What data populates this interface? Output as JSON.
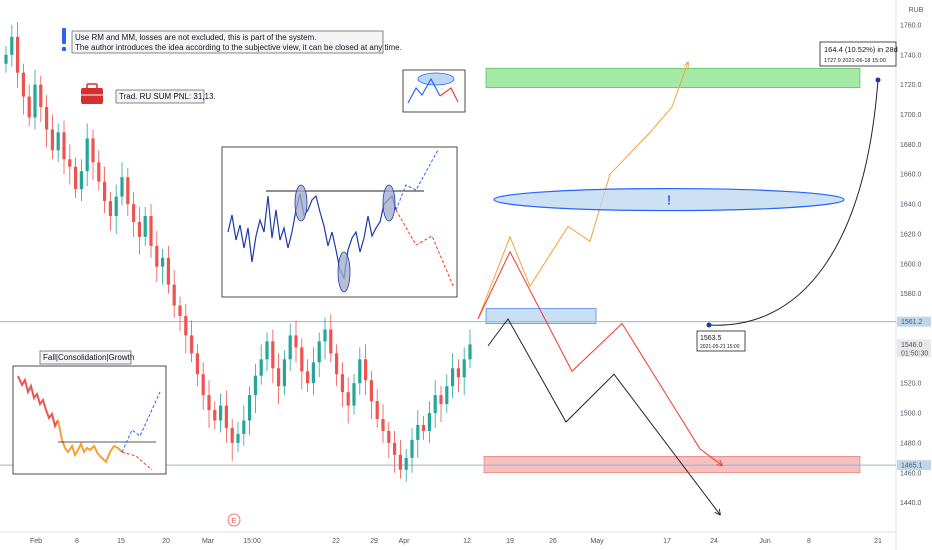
{
  "chart_data": {
    "type": "candlestick",
    "currency": "RUB",
    "ylim": [
      1425,
      1770
    ],
    "y_ticks": [
      1440,
      1460,
      1480,
      1500,
      1520,
      1540,
      1560,
      1580,
      1600,
      1620,
      1640,
      1660,
      1680,
      1700,
      1720,
      1740,
      1760
    ],
    "y_tick_labels": [
      "1440.0",
      "1460.0",
      "1480.0",
      "1500.0",
      "1520.0",
      "1540.0",
      "1560.0",
      "1580.0",
      "1600.0",
      "1620.0",
      "1640.0",
      "1660.0",
      "1680.0",
      "1700.0",
      "1720.0",
      "1740.0",
      "1760.0"
    ],
    "x_tick_labels": [
      "Feb",
      "8",
      "15",
      "20",
      "Mar",
      "15:00",
      "22",
      "29",
      "Apr",
      "12",
      "19",
      "26",
      "May",
      "17",
      "24",
      "Jun",
      "8",
      "21"
    ],
    "price_badges": [
      {
        "label": "1561.2",
        "value": 1561.2,
        "color": "#bfd7ea"
      },
      {
        "label": "1546.0",
        "sublabel": "01:50:30",
        "value": 1546.0,
        "color": "#e8e8e8"
      },
      {
        "label": "1465.1",
        "value": 1465.1,
        "color": "#bfd7ea"
      }
    ],
    "horizontal_levels": [
      1561.2,
      1465.1
    ],
    "candles_close_path": [
      1740,
      1752,
      1728,
      1712,
      1698,
      1720,
      1705,
      1690,
      1676,
      1688,
      1670,
      1665,
      1650,
      1662,
      1684,
      1668,
      1655,
      1642,
      1632,
      1645,
      1658,
      1640,
      1628,
      1618,
      1632,
      1612,
      1598,
      1604,
      1586,
      1572,
      1565,
      1552,
      1540,
      1526,
      1512,
      1502,
      1495,
      1505,
      1490,
      1480,
      1486,
      1495,
      1512,
      1525,
      1536,
      1548,
      1530,
      1518,
      1536,
      1552,
      1544,
      1528,
      1520,
      1534,
      1548,
      1556,
      1540,
      1526,
      1514,
      1505,
      1520,
      1536,
      1522,
      1508,
      1496,
      1488,
      1480,
      1472,
      1462,
      1470,
      1482,
      1492,
      1488,
      1500,
      1512,
      1506,
      1518,
      1530,
      1524,
      1536,
      1546
    ]
  },
  "zones": {
    "target_zone": {
      "from": 1718,
      "to": 1731,
      "color": "#7ee07e"
    },
    "resistance_zone": {
      "from": 1560,
      "to": 1570,
      "color": "#bcd7f2"
    },
    "support_zone": {
      "from": 1460,
      "to": 1471,
      "color": "#f2a5a5"
    }
  },
  "ellipse_mark": {
    "value": 1643,
    "label": "!"
  },
  "projections": {
    "orange_path": [
      1563,
      1618,
      1585,
      1625,
      1615,
      1660,
      1688,
      1705,
      1735
    ],
    "red_path": [
      1563,
      1608,
      1528,
      1560,
      1476,
      1465
    ],
    "black_path": [
      1545,
      1563,
      1494,
      1526,
      1432
    ]
  },
  "measure_label": {
    "line1": "164.4 (10.52%) in 28d",
    "line2": "1727.9    2021-06-18  15:00"
  },
  "point_label": {
    "line1": "1563.5",
    "line2": "2021-05-21 15:00"
  },
  "annotations": {
    "disclaimer_line1": "Use RM and MM, losses are not excluded, this is part of the system.",
    "disclaimer_line2": "The author introduces the idea according to the subjective view, it can be closed at any time.",
    "pnl_label": "Trad. RU SUM PNL: 31,13.",
    "phases_label": "Fall|Consolidation|Growth",
    "event_marker": "E"
  },
  "colors": {
    "bull": "#26a69a",
    "bear": "#ef5350",
    "blue_line": "#1e3aa8",
    "orange": "#f6a035",
    "red": "#f23b2a",
    "black": "#222222",
    "accent_blue": "#2962ff",
    "briefcase": "#d62f2f"
  }
}
